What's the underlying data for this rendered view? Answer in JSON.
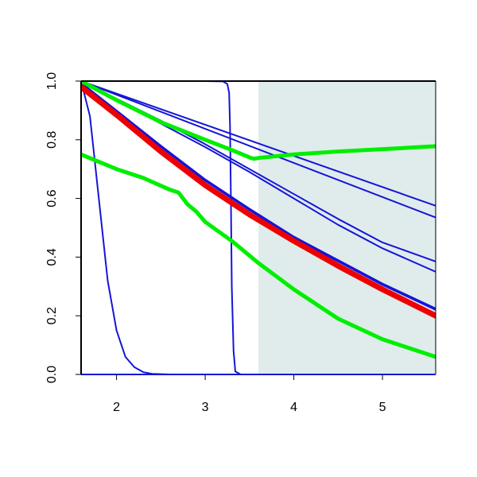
{
  "chart_data": {
    "type": "line",
    "title": "",
    "xlabel": "",
    "ylabel": "",
    "xlim": [
      1.6,
      5.6
    ],
    "ylim": [
      0.0,
      1.0
    ],
    "x_ticks": [
      2,
      3,
      4,
      5
    ],
    "x_tick_labels": [
      "2",
      "3",
      "4",
      "5"
    ],
    "y_ticks": [
      0.0,
      0.2,
      0.4,
      0.6,
      0.8,
      1.0
    ],
    "y_tick_labels": [
      "0.0",
      "0.2",
      "0.4",
      "0.6",
      "0.8",
      "1.0"
    ],
    "grid": false,
    "legend": "none",
    "shaded_region": {
      "x_start": 3.6,
      "x_end": 5.6,
      "color": "#e0ecec"
    },
    "series": [
      {
        "color": "#1515d8",
        "width": 2,
        "x": [
          1.6,
          1.7,
          1.8,
          1.9,
          2.0,
          2.1,
          2.2,
          2.3,
          2.4,
          2.6,
          3.0,
          4.0,
          5.0,
          5.6
        ],
        "y": [
          1.0,
          0.88,
          0.6,
          0.32,
          0.15,
          0.06,
          0.025,
          0.008,
          0.002,
          0.0,
          0.0,
          0.0,
          0.0,
          0.0
        ]
      },
      {
        "color": "#1515d8",
        "width": 2,
        "x": [
          1.6,
          2.0,
          2.5,
          3.0,
          3.2,
          3.25,
          3.27,
          3.28,
          3.29,
          3.3,
          3.32,
          3.34,
          3.4,
          4.0,
          5.0,
          5.6
        ],
        "y": [
          1.0,
          1.0,
          1.0,
          1.0,
          0.999,
          0.99,
          0.96,
          0.85,
          0.6,
          0.3,
          0.08,
          0.01,
          0.0,
          0.0,
          0.0,
          0.0
        ]
      },
      {
        "color": "#1515d8",
        "width": 2,
        "x": [
          1.6,
          5.6
        ],
        "y": [
          1.0,
          0.575
        ]
      },
      {
        "color": "#1515d8",
        "width": 2,
        "x": [
          1.6,
          5.6
        ],
        "y": [
          1.0,
          0.535
        ]
      },
      {
        "color": "#1515d8",
        "width": 2,
        "x": [
          1.6,
          2.0,
          2.5,
          3.0,
          3.5,
          4.0,
          4.5,
          5.0,
          5.6
        ],
        "y": [
          1.0,
          0.94,
          0.865,
          0.785,
          0.7,
          0.615,
          0.53,
          0.45,
          0.385
        ]
      },
      {
        "color": "#1515d8",
        "width": 2,
        "x": [
          1.6,
          2.0,
          2.5,
          3.0,
          3.5,
          4.0,
          4.5,
          5.0,
          5.6
        ],
        "y": [
          1.0,
          0.935,
          0.855,
          0.775,
          0.69,
          0.6,
          0.51,
          0.43,
          0.35
        ]
      },
      {
        "color": "#1515d8",
        "width": 2,
        "x": [
          1.6,
          2.0,
          2.5,
          3.0,
          3.5,
          4.0,
          4.5,
          5.0,
          5.6
        ],
        "y": [
          0.995,
          0.9,
          0.78,
          0.665,
          0.565,
          0.47,
          0.39,
          0.31,
          0.225
        ]
      },
      {
        "color": "#1515d8",
        "width": 2,
        "x": [
          1.6,
          2.0,
          2.5,
          3.0,
          3.5,
          4.0,
          4.5,
          5.0,
          5.6
        ],
        "y": [
          0.99,
          0.895,
          0.775,
          0.66,
          0.56,
          0.465,
          0.385,
          0.305,
          0.22
        ]
      },
      {
        "color": "#ee0000",
        "width": 7,
        "x": [
          1.6,
          2.0,
          2.5,
          3.0,
          3.5,
          4.0,
          4.5,
          5.0,
          5.6
        ],
        "y": [
          0.98,
          0.885,
          0.76,
          0.645,
          0.545,
          0.455,
          0.37,
          0.29,
          0.2
        ]
      },
      {
        "color": "#00ee00",
        "width": 5,
        "x": [
          1.6,
          2.0,
          2.5,
          3.0,
          3.3,
          3.5,
          3.55,
          3.6,
          4.0,
          4.5,
          5.0,
          5.6
        ],
        "y": [
          1.0,
          0.935,
          0.86,
          0.8,
          0.765,
          0.74,
          0.735,
          0.738,
          0.75,
          0.76,
          0.768,
          0.778
        ]
      },
      {
        "color": "#00ee00",
        "width": 5,
        "x": [
          1.6,
          2.0,
          2.3,
          2.6,
          2.7,
          2.8,
          2.9,
          3.0,
          3.3,
          3.6,
          4.0,
          4.5,
          5.0,
          5.6
        ],
        "y": [
          0.75,
          0.7,
          0.67,
          0.63,
          0.62,
          0.58,
          0.555,
          0.52,
          0.455,
          0.38,
          0.29,
          0.19,
          0.12,
          0.06
        ]
      }
    ]
  }
}
